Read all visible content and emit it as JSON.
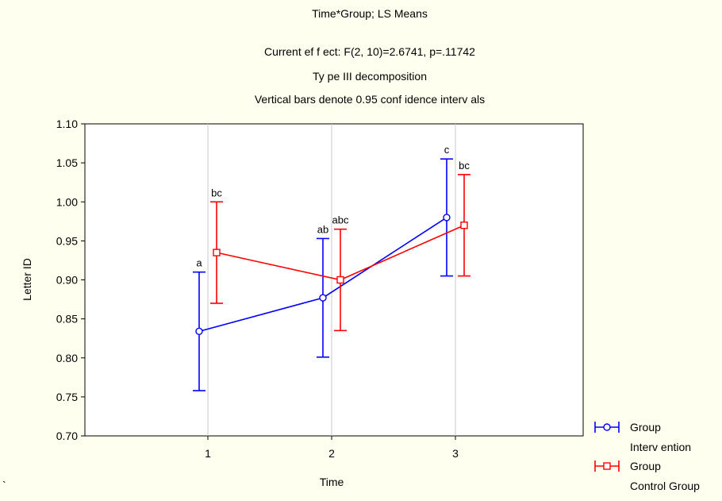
{
  "chart_data": {
    "type": "line",
    "title_lines": [
      "Time*Group; LS Means",
      "Current ef f ect: F(2, 10)=2.6741, p=.11742",
      "Ty pe III decomposition",
      "Vertical bars denote 0.95 conf idence interv als"
    ],
    "xlabel": "Time",
    "ylabel": "Letter ID",
    "categories": [
      "1",
      "2",
      "3"
    ],
    "ylim": [
      0.7,
      1.1
    ],
    "yticks": [
      "0.70",
      "0.75",
      "0.80",
      "0.85",
      "0.90",
      "0.95",
      "1.00",
      "1.05",
      "1.10"
    ],
    "grid": "vertical",
    "legend_position": "bottom-right",
    "stray_mark": "`",
    "series": [
      {
        "legend_line1": "Group",
        "legend_line2": "Interv ention",
        "color": "#0000ff",
        "marker": "circle",
        "values": [
          0.834,
          0.877,
          0.98
        ],
        "lower": [
          0.758,
          0.801,
          0.905
        ],
        "upper": [
          0.91,
          0.953,
          1.055
        ],
        "labels": [
          "a",
          "ab",
          "c"
        ]
      },
      {
        "legend_line1": "Group",
        "legend_line2": "Control Group",
        "color": "#ff0000",
        "marker": "square",
        "values": [
          0.935,
          0.9,
          0.97
        ],
        "lower": [
          0.87,
          0.835,
          0.905
        ],
        "upper": [
          1.0,
          0.965,
          1.035
        ],
        "labels": [
          "bc",
          "abc",
          "bc"
        ]
      }
    ]
  }
}
